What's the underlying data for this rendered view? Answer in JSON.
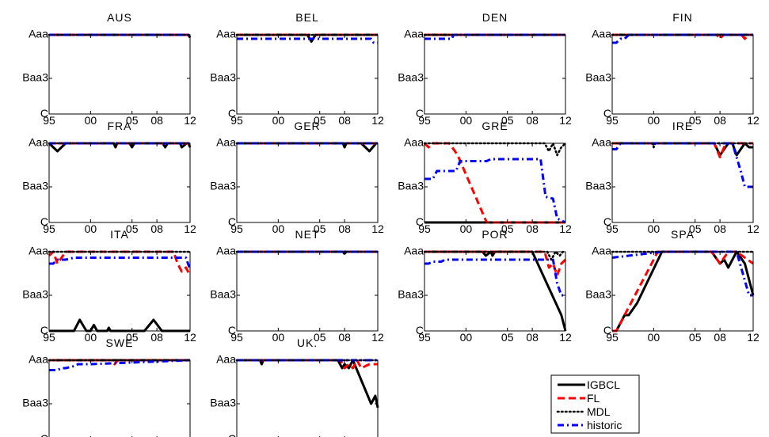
{
  "chart_data": {
    "type": "line",
    "x_ticks": [
      "95",
      "00",
      "05",
      "08",
      "12"
    ],
    "x_tick_values": [
      1995,
      2000,
      2005,
      2008,
      2012
    ],
    "xlim": [
      1995,
      2012
    ],
    "y_ticks": [
      "Aaa",
      "Baa3",
      "C"
    ],
    "y_tick_values": [
      21,
      10,
      1
    ],
    "ylim": [
      1,
      21
    ],
    "grid": false,
    "legend_placement": "bottom-right",
    "series_styles": [
      {
        "name": "IGBCL",
        "color": "#000000",
        "dash": "solid"
      },
      {
        "name": "FL",
        "color": "#ff0000",
        "dash": "dashed"
      },
      {
        "name": "MDL",
        "color": "#000000",
        "dash": "dotted"
      },
      {
        "name": "historic",
        "color": "#0000ff",
        "dash": "dashdot"
      }
    ],
    "panels": [
      {
        "title": "AUS",
        "series": {
          "IGBCL": {
            "x": [
              1995,
              2011.8,
              2012
            ],
            "y": [
              21,
              21,
              20.3
            ]
          },
          "FL": {
            "x": [
              1995,
              2012
            ],
            "y": [
              21,
              21
            ]
          },
          "MDL": {
            "x": [
              1995,
              2012
            ],
            "y": [
              21,
              21
            ]
          },
          "historic": {
            "x": [
              1995,
              2012
            ],
            "y": [
              21,
              21
            ]
          }
        }
      },
      {
        "title": "BEL",
        "series": {
          "IGBCL": {
            "x": [
              1995,
              2003.5,
              2004,
              2004.5,
              2012
            ],
            "y": [
              21,
              21,
              19.3,
              21,
              21
            ]
          },
          "FL": {
            "x": [
              1995,
              2012
            ],
            "y": [
              21,
              21
            ]
          },
          "MDL": {
            "x": [
              1995,
              2012
            ],
            "y": [
              21,
              21
            ]
          },
          "historic": {
            "x": [
              1995,
              2011.2,
              2011.5,
              2012
            ],
            "y": [
              20,
              20,
              19,
              19
            ]
          }
        }
      },
      {
        "title": "DEN",
        "series": {
          "IGBCL": {
            "x": [
              1995,
              2012
            ],
            "y": [
              21,
              21
            ]
          },
          "FL": {
            "x": [
              1995,
              2012
            ],
            "y": [
              21,
              21
            ]
          },
          "MDL": {
            "x": [
              1995,
              2012
            ],
            "y": [
              21,
              21
            ]
          },
          "historic": {
            "x": [
              1995,
              1998.3,
              1998.5,
              2012
            ],
            "y": [
              20,
              20,
              21,
              21
            ]
          }
        }
      },
      {
        "title": "FIN",
        "series": {
          "IGBCL": {
            "x": [
              1995,
              2012
            ],
            "y": [
              21,
              21
            ]
          },
          "FL": {
            "x": [
              1995,
              2007.6,
              2008,
              2008.4,
              2010.6,
              2011,
              2011.4,
              2012
            ],
            "y": [
              21,
              21,
              20,
              21,
              21,
              20,
              21,
              21
            ]
          },
          "MDL": {
            "x": [
              1995,
              2012
            ],
            "y": [
              21,
              21
            ]
          },
          "historic": {
            "x": [
              1995,
              1995.5,
              1996,
              1996.5,
              1997,
              2012
            ],
            "y": [
              19,
              19,
              20,
              20,
              21,
              21
            ]
          }
        }
      },
      {
        "title": "FRA",
        "series": {
          "IGBCL": {
            "x": [
              1995,
              1996,
              1997,
              2002.8,
              2003,
              2003.2,
              2004.7,
              2005,
              2005.3,
              2008.7,
              2009,
              2009.3,
              2010.8,
              2011,
              2011.6,
              2011.8,
              2012
            ],
            "y": [
              21,
              19,
              21,
              21,
              20,
              21,
              21,
              20,
              21,
              21,
              20,
              21,
              21,
              20,
              21,
              21,
              20
            ]
          },
          "FL": {
            "x": [
              1995,
              2012
            ],
            "y": [
              21,
              21
            ]
          },
          "MDL": {
            "x": [
              1995,
              2012
            ],
            "y": [
              21,
              21
            ]
          },
          "historic": {
            "x": [
              1995,
              2012
            ],
            "y": [
              21,
              21
            ]
          }
        }
      },
      {
        "title": "GER",
        "series": {
          "IGBCL": {
            "x": [
              1995,
              2007.8,
              2008,
              2008.2,
              2010,
              2011,
              2011.8,
              2012
            ],
            "y": [
              21,
              21,
              20,
              21,
              21,
              19,
              21,
              21
            ]
          },
          "FL": {
            "x": [
              1995,
              2012
            ],
            "y": [
              21,
              21
            ]
          },
          "MDL": {
            "x": [
              1995,
              2012
            ],
            "y": [
              21,
              21
            ]
          },
          "historic": {
            "x": [
              1995,
              2012
            ],
            "y": [
              21,
              21
            ]
          }
        }
      },
      {
        "title": "GRE",
        "series": {
          "IGBCL": {
            "x": [
              1995,
              2012
            ],
            "y": [
              1,
              1
            ]
          },
          "FL": {
            "x": [
              1995,
              1995.5,
              1996,
              1998,
              1999,
              2002.5,
              2012
            ],
            "y": [
              21,
              20,
              21,
              21,
              18,
              1,
              1
            ]
          },
          "MDL": {
            "x": [
              1995,
              2009.5,
              2010,
              2010.5,
              2011,
              2011.5,
              2012
            ],
            "y": [
              21,
              21,
              19,
              21,
              18,
              20,
              21
            ]
          },
          "historic": {
            "x": [
              1995,
              1996,
              1996.5,
              1998.8,
              1999.3,
              2002.5,
              2003,
              2009,
              2009.6,
              2010.5,
              2011,
              2012
            ],
            "y": [
              12,
              12,
              14,
              14,
              16.5,
              16.5,
              17,
              17,
              7.5,
              7,
              2,
              1
            ]
          }
        }
      },
      {
        "title": "IRE",
        "series": {
          "IGBCL": {
            "x": [
              1995,
              2007.3,
              2008,
              2009,
              2009.5,
              2010,
              2011,
              2011.5,
              2012
            ],
            "y": [
              21,
              21,
              18,
              21,
              21,
              18,
              21,
              20,
              20
            ]
          },
          "FL": {
            "x": [
              1995,
              2007.3,
              2008,
              2008.7,
              2012
            ],
            "y": [
              21,
              21,
              17.5,
              21,
              21
            ]
          },
          "MDL": {
            "x": [
              1995,
              1999.8,
              2000,
              2000.2,
              2012
            ],
            "y": [
              21,
              21,
              20,
              21,
              21
            ]
          },
          "historic": {
            "x": [
              1995,
              1995.5,
              1996,
              2009.5,
              2010.5,
              2011,
              2011.5,
              2012
            ],
            "y": [
              19.5,
              19.5,
              21,
              21,
              14,
              10,
              10,
              10
            ]
          }
        }
      },
      {
        "title": "ITA",
        "series": {
          "IGBCL": {
            "x": [
              1995,
              1998,
              1998.7,
              1999.5,
              2000,
              2000.4,
              2000.8,
              2002,
              2002.2,
              2002.4,
              2006.5,
              2007.6,
              2008.6,
              2012
            ],
            "y": [
              1,
              1,
              3.8,
              1,
              1,
              2.5,
              1,
              1,
              1.8,
              1,
              1,
              3.8,
              1,
              1
            ]
          },
          "FL": {
            "x": [
              1995,
              1995.5,
              1996,
              1997,
              1998,
              2010,
              2010.5,
              2011,
              2011.5,
              2012
            ],
            "y": [
              20,
              21,
              18,
              21,
              21,
              21,
              18,
              16,
              17,
              15
            ]
          },
          "MDL": {
            "x": [
              1995,
              2012
            ],
            "y": [
              21,
              21
            ]
          },
          "historic": {
            "x": [
              1995,
              1995.5,
              1996,
              1997,
              1998,
              1999,
              2011.5,
              2012
            ],
            "y": [
              18,
              18,
              19,
              19,
              19.5,
              19.5,
              19.5,
              16.5
            ]
          }
        }
      },
      {
        "title": "NET",
        "series": {
          "IGBCL": {
            "x": [
              1995,
              2012
            ],
            "y": [
              21,
              21
            ]
          },
          "FL": {
            "x": [
              1995,
              2012
            ],
            "y": [
              21,
              21
            ]
          },
          "MDL": {
            "x": [
              1995,
              2007.8,
              2008,
              2008.2,
              2012
            ],
            "y": [
              21,
              21,
              20.3,
              21,
              21
            ]
          },
          "historic": {
            "x": [
              1995,
              2012
            ],
            "y": [
              21,
              21
            ]
          }
        }
      },
      {
        "title": "POR",
        "series": {
          "IGBCL": {
            "x": [
              1995,
              2002,
              2002.4,
              2003,
              2003.2,
              2003.5,
              2004,
              2008,
              2011.5,
              2012
            ],
            "y": [
              21,
              21,
              20,
              21,
              20,
              21,
              21,
              21,
              5,
              1
            ]
          },
          "FL": {
            "x": [
              1995,
              2009.5,
              2010,
              2010.5,
              2011,
              2011.5,
              2012
            ],
            "y": [
              21,
              21,
              17,
              18,
              15,
              18,
              19
            ]
          },
          "MDL": {
            "x": [
              1995,
              2009.8,
              2010.3,
              2010.8,
              2011.3,
              2011.7,
              2012
            ],
            "y": [
              21,
              21,
              19,
              21,
              20,
              21,
              21
            ]
          },
          "historic": {
            "x": [
              1995,
              1995.5,
              1996,
              1997,
              1997.5,
              2010.5,
              2011,
              2011.5,
              2012
            ],
            "y": [
              18,
              18,
              18.5,
              18.5,
              19,
              19,
              13,
              10,
              10
            ]
          }
        }
      },
      {
        "title": "SPA",
        "series": {
          "IGBCL": {
            "x": [
              1995,
              1995.5,
              1996,
              1996.5,
              1997,
              1998,
              2001,
              2007,
              2008,
              2008.5,
              2009,
              2009.5,
              2010,
              2011,
              2012
            ],
            "y": [
              1,
              1,
              3,
              5,
              5,
              8,
              21,
              21,
              18,
              19,
              17,
              19,
              21,
              18,
              10
            ]
          },
          "FL": {
            "x": [
              1995,
              1995.5,
              2000.5,
              2007,
              2008,
              2009,
              2010,
              2012
            ],
            "y": [
              1,
              1,
              21,
              21,
              18,
              21,
              21,
              18
            ]
          },
          "MDL": {
            "x": [
              1995,
              2012
            ],
            "y": [
              21,
              21
            ]
          },
          "historic": {
            "x": [
              1995,
              2001,
              2010,
              2011.5,
              2012
            ],
            "y": [
              19.5,
              21,
              21,
              10,
              10
            ]
          }
        }
      },
      {
        "title": "SWE",
        "series": {
          "IGBCL": {
            "x": [
              1995,
              2012
            ],
            "y": [
              21,
              21
            ]
          },
          "FL": {
            "x": [
              1995,
              2002.5,
              2002.9,
              2003.3,
              2012
            ],
            "y": [
              21,
              21,
              20,
              21,
              21
            ]
          },
          "MDL": {
            "x": [
              1995,
              2012
            ],
            "y": [
              21,
              21
            ]
          },
          "historic": {
            "x": [
              1995,
              1995.5,
              1996,
              1996.5,
              1997,
              1998,
              1998.5,
              2000,
              2012
            ],
            "y": [
              18.5,
              18.5,
              18.5,
              19,
              19,
              19.5,
              20,
              20,
              21
            ]
          }
        }
      },
      {
        "title": "UK.",
        "series": {
          "IGBCL": {
            "x": [
              1995,
              1997.8,
              1998,
              1998.2,
              2007.2,
              2007.7,
              2008,
              2008.5,
              2009,
              2011.2,
              2011.7,
              2012
            ],
            "y": [
              21,
              21,
              20,
              21,
              21,
              19,
              20,
              19,
              21,
              10,
              12,
              9
            ]
          },
          "FL": {
            "x": [
              1995,
              2007.5,
              2008,
              2008.5,
              2009,
              2009.5,
              2010,
              2011,
              2011.5,
              2012
            ],
            "y": [
              21,
              21,
              19,
              20,
              19,
              21,
              19,
              20,
              20,
              20
            ]
          },
          "MDL": {
            "x": [
              1995,
              2012
            ],
            "y": [
              21,
              21
            ]
          },
          "historic": {
            "x": [
              1995,
              2012
            ],
            "y": [
              21,
              21
            ]
          }
        }
      }
    ]
  }
}
